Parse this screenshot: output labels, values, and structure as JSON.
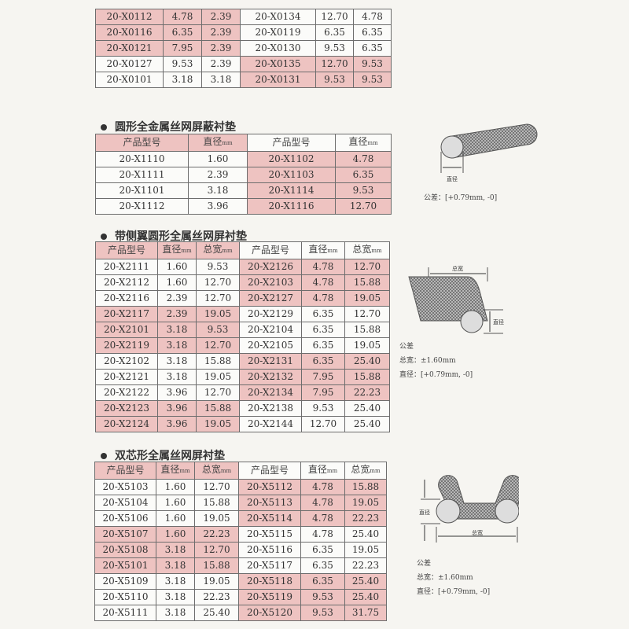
{
  "colors": {
    "highlight": "#eec3c1",
    "border": "#6d6d6d"
  },
  "table1": {
    "rows": [
      {
        "l": [
          "20-X0112",
          "4.78",
          "2.39"
        ],
        "lh": true,
        "r": [
          "20-X0134",
          "12.70",
          "4.78"
        ],
        "rh": false
      },
      {
        "l": [
          "20-X0116",
          "6.35",
          "2.39"
        ],
        "lh": true,
        "r": [
          "20-X0119",
          "6.35",
          "6.35"
        ],
        "rh": false
      },
      {
        "l": [
          "20-X0121",
          "7.95",
          "2.39"
        ],
        "lh": true,
        "r": [
          "20-X0130",
          "9.53",
          "6.35"
        ],
        "rh": false
      },
      {
        "l": [
          "20-X0127",
          "9.53",
          "2.39"
        ],
        "lh": false,
        "r": [
          "20-X0135",
          "12.70",
          "9.53"
        ],
        "rh": true
      },
      {
        "l": [
          "20-X0101",
          "3.18",
          "3.18"
        ],
        "lh": false,
        "r": [
          "20-X0131",
          "9.53",
          "9.53"
        ],
        "rh": true
      }
    ]
  },
  "section2": {
    "title": "圆形全金属丝网屏蔽衬垫",
    "header": {
      "l": [
        "产品型号",
        "直径"
      ],
      "lh": true,
      "r": [
        "产品型号",
        "直径"
      ],
      "rh": false,
      "unit": "mm"
    },
    "rows": [
      {
        "l": [
          "20-X1110",
          "1.60"
        ],
        "lh": false,
        "r": [
          "20-X1102",
          "4.78"
        ],
        "rh": true
      },
      {
        "l": [
          "20-X1111",
          "2.39"
        ],
        "lh": false,
        "r": [
          "20-X1103",
          "6.35"
        ],
        "rh": true
      },
      {
        "l": [
          "20-X1101",
          "3.18"
        ],
        "lh": false,
        "r": [
          "20-X1114",
          "9.53"
        ],
        "rh": true
      },
      {
        "l": [
          "20-X1112",
          "3.96"
        ],
        "lh": false,
        "r": [
          "20-X1116",
          "12.70"
        ],
        "rh": true
      }
    ],
    "diagram_label": "直径",
    "tolerance": "公差：[+0.79mm, -0]"
  },
  "section3": {
    "title": "带侧翼圆形全属丝网屏衬垫",
    "header": {
      "l": [
        "产品型号",
        "直径",
        "总宽"
      ],
      "lh": true,
      "r": [
        "产品型号",
        "直径",
        "总宽"
      ],
      "rh": false,
      "unit": "mm"
    },
    "rows": [
      {
        "l": [
          "20-X2111",
          "1.60",
          "9.53"
        ],
        "lh": false,
        "r": [
          "20-X2126",
          "4.78",
          "12.70"
        ],
        "rh": true
      },
      {
        "l": [
          "20-X2112",
          "1.60",
          "12.70"
        ],
        "lh": false,
        "r": [
          "20-X2103",
          "4.78",
          "15.88"
        ],
        "rh": true
      },
      {
        "l": [
          "20-X2116",
          "2.39",
          "12.70"
        ],
        "lh": false,
        "r": [
          "20-X2127",
          "4.78",
          "19.05"
        ],
        "rh": true
      },
      {
        "l": [
          "20-X2117",
          "2.39",
          "19.05"
        ],
        "lh": true,
        "r": [
          "20-X2129",
          "6.35",
          "12.70"
        ],
        "rh": false
      },
      {
        "l": [
          "20-X2101",
          "3.18",
          "9.53"
        ],
        "lh": true,
        "r": [
          "20-X2104",
          "6.35",
          "15.88"
        ],
        "rh": false
      },
      {
        "l": [
          "20-X2119",
          "3.18",
          "12.70"
        ],
        "lh": true,
        "r": [
          "20-X2105",
          "6.35",
          "19.05"
        ],
        "rh": false
      },
      {
        "l": [
          "20-X2102",
          "3.18",
          "15.88"
        ],
        "lh": false,
        "r": [
          "20-X2131",
          "6.35",
          "25.40"
        ],
        "rh": true
      },
      {
        "l": [
          "20-X2121",
          "3.18",
          "19.05"
        ],
        "lh": false,
        "r": [
          "20-X2132",
          "7.95",
          "15.88"
        ],
        "rh": true
      },
      {
        "l": [
          "20-X2122",
          "3.96",
          "12.70"
        ],
        "lh": false,
        "r": [
          "20-X2134",
          "7.95",
          "22.23"
        ],
        "rh": true
      },
      {
        "l": [
          "20-X2123",
          "3.96",
          "15.88"
        ],
        "lh": true,
        "r": [
          "20-X2138",
          "9.53",
          "25.40"
        ],
        "rh": false
      },
      {
        "l": [
          "20-X2124",
          "3.96",
          "19.05"
        ],
        "lh": true,
        "r": [
          "20-X2144",
          "12.70",
          "25.40"
        ],
        "rh": false
      }
    ],
    "diagram_width_label": "总宽",
    "diagram_dia_label": "直径",
    "tol_title": "公差",
    "tol_width": "总宽：±1.60mm",
    "tol_dia": "直径：[+0.79mm, -0]"
  },
  "section4": {
    "title": "双芯形全属丝网屏衬垫",
    "header": {
      "l": [
        "产品型号",
        "直径",
        "总宽"
      ],
      "lh": true,
      "r": [
        "产品型号",
        "直径",
        "总宽"
      ],
      "rh": false,
      "unit": "mm"
    },
    "rows": [
      {
        "l": [
          "20-X5103",
          "1.60",
          "12.70"
        ],
        "lh": false,
        "r": [
          "20-X5112",
          "4.78",
          "15.88"
        ],
        "rh": true
      },
      {
        "l": [
          "20-X5104",
          "1.60",
          "15.88"
        ],
        "lh": false,
        "r": [
          "20-X5113",
          "4.78",
          "19.05"
        ],
        "rh": true
      },
      {
        "l": [
          "20-X5106",
          "1.60",
          "19.05"
        ],
        "lh": false,
        "r": [
          "20-X5114",
          "4.78",
          "22.23"
        ],
        "rh": true
      },
      {
        "l": [
          "20-X5107",
          "1.60",
          "22.23"
        ],
        "lh": true,
        "r": [
          "20-X5115",
          "4.78",
          "25.40"
        ],
        "rh": false
      },
      {
        "l": [
          "20-X5108",
          "3.18",
          "12.70"
        ],
        "lh": true,
        "r": [
          "20-X5116",
          "6.35",
          "19.05"
        ],
        "rh": false
      },
      {
        "l": [
          "20-X5101",
          "3.18",
          "15.88"
        ],
        "lh": true,
        "r": [
          "20-X5117",
          "6.35",
          "22.23"
        ],
        "rh": false
      },
      {
        "l": [
          "20-X5109",
          "3.18",
          "19.05"
        ],
        "lh": false,
        "r": [
          "20-X5118",
          "6.35",
          "25.40"
        ],
        "rh": true
      },
      {
        "l": [
          "20-X5110",
          "3.18",
          "22.23"
        ],
        "lh": false,
        "r": [
          "20-X5119",
          "9.53",
          "25.40"
        ],
        "rh": true
      },
      {
        "l": [
          "20-X5111",
          "3.18",
          "25.40"
        ],
        "lh": false,
        "r": [
          "20-X5120",
          "9.53",
          "31.75"
        ],
        "rh": true
      }
    ],
    "diagram_width_label": "总宽",
    "diagram_dia_label": "直径",
    "tol_title": "公差",
    "tol_width": "总宽：±1.60mm",
    "tol_dia": "直径：[+0.79mm, -0]"
  }
}
